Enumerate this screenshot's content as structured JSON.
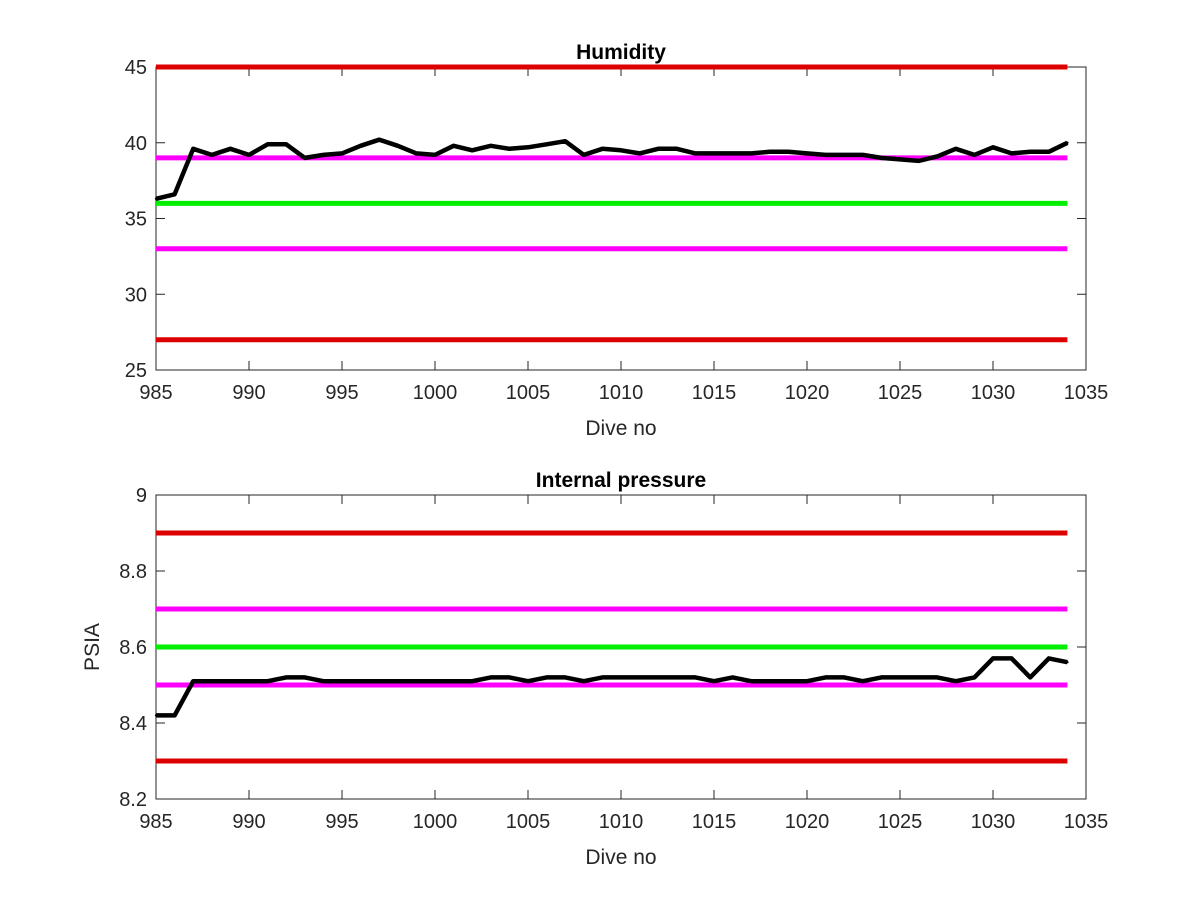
{
  "chart_data": [
    {
      "type": "line",
      "title": "Humidity",
      "xlabel": "Dive no",
      "ylabel": "",
      "xlim": [
        985,
        1035
      ],
      "ylim": [
        25,
        45
      ],
      "xticks": [
        985,
        990,
        995,
        1000,
        1005,
        1010,
        1015,
        1020,
        1025,
        1030,
        1035
      ],
      "yticks": [
        25,
        30,
        35,
        40,
        45
      ],
      "xtick_labels": [
        "985",
        "990",
        "995",
        "1000",
        "1005",
        "1010",
        "1015",
        "1020",
        "1025",
        "1030",
        "1035"
      ],
      "ytick_labels": [
        "25",
        "30",
        "35",
        "40",
        "45"
      ],
      "grid": false,
      "reference_lines": [
        {
          "value": 45,
          "color": "#dd0000"
        },
        {
          "value": 39,
          "color": "#ff00ff"
        },
        {
          "value": 36,
          "color": "#00ee00"
        },
        {
          "value": 33,
          "color": "#ff00ff"
        },
        {
          "value": 27,
          "color": "#dd0000"
        }
      ],
      "series": [
        {
          "color": "#000000",
          "x": [
            985,
            986,
            987,
            988,
            989,
            990,
            991,
            992,
            993,
            994,
            995,
            996,
            997,
            998,
            999,
            1000,
            1001,
            1002,
            1003,
            1004,
            1005,
            1006,
            1007,
            1008,
            1009,
            1010,
            1011,
            1012,
            1013,
            1014,
            1015,
            1016,
            1017,
            1018,
            1019,
            1020,
            1021,
            1022,
            1023,
            1024,
            1025,
            1026,
            1027,
            1028,
            1029,
            1030,
            1031,
            1032,
            1033,
            1034
          ],
          "y": [
            36.3,
            36.6,
            39.6,
            39.2,
            39.6,
            39.2,
            39.9,
            39.9,
            39.0,
            39.2,
            39.3,
            39.8,
            40.2,
            39.8,
            39.3,
            39.2,
            39.8,
            39.5,
            39.8,
            39.6,
            39.7,
            39.9,
            40.1,
            39.2,
            39.6,
            39.5,
            39.3,
            39.6,
            39.6,
            39.3,
            39.3,
            39.3,
            39.3,
            39.4,
            39.4,
            39.3,
            39.2,
            39.2,
            39.2,
            39.0,
            38.9,
            38.8,
            39.1,
            39.6,
            39.2,
            39.7,
            39.3,
            39.4,
            39.4,
            40.0
          ]
        }
      ]
    },
    {
      "type": "line",
      "title": "Internal pressure",
      "xlabel": "Dive no",
      "ylabel": "PSIA",
      "xlim": [
        985,
        1035
      ],
      "ylim": [
        8.2,
        9.0
      ],
      "xticks": [
        985,
        990,
        995,
        1000,
        1005,
        1010,
        1015,
        1020,
        1025,
        1030,
        1035
      ],
      "yticks": [
        8.2,
        8.4,
        8.6,
        8.8,
        9.0
      ],
      "xtick_labels": [
        "985",
        "990",
        "995",
        "1000",
        "1005",
        "1010",
        "1015",
        "1020",
        "1025",
        "1030",
        "1035"
      ],
      "ytick_labels": [
        "8.2",
        "8.4",
        "8.6",
        "8.8",
        "9"
      ],
      "grid": false,
      "reference_lines": [
        {
          "value": 8.9,
          "color": "#dd0000"
        },
        {
          "value": 8.7,
          "color": "#ff00ff"
        },
        {
          "value": 8.6,
          "color": "#00ee00"
        },
        {
          "value": 8.5,
          "color": "#ff00ff"
        },
        {
          "value": 8.3,
          "color": "#dd0000"
        }
      ],
      "series": [
        {
          "color": "#000000",
          "x": [
            985,
            986,
            987,
            988,
            989,
            990,
            991,
            992,
            993,
            994,
            995,
            996,
            997,
            998,
            999,
            1000,
            1001,
            1002,
            1003,
            1004,
            1005,
            1006,
            1007,
            1008,
            1009,
            1010,
            1011,
            1012,
            1013,
            1014,
            1015,
            1016,
            1017,
            1018,
            1019,
            1020,
            1021,
            1022,
            1023,
            1024,
            1025,
            1026,
            1027,
            1028,
            1029,
            1030,
            1031,
            1032,
            1033,
            1034
          ],
          "y": [
            8.42,
            8.42,
            8.51,
            8.51,
            8.51,
            8.51,
            8.51,
            8.52,
            8.52,
            8.51,
            8.51,
            8.51,
            8.51,
            8.51,
            8.51,
            8.51,
            8.51,
            8.51,
            8.52,
            8.52,
            8.51,
            8.52,
            8.52,
            8.51,
            8.52,
            8.52,
            8.52,
            8.52,
            8.52,
            8.52,
            8.51,
            8.52,
            8.51,
            8.51,
            8.51,
            8.51,
            8.52,
            8.52,
            8.51,
            8.52,
            8.52,
            8.52,
            8.52,
            8.51,
            8.52,
            8.57,
            8.57,
            8.52,
            8.57,
            8.56
          ]
        }
      ]
    }
  ]
}
